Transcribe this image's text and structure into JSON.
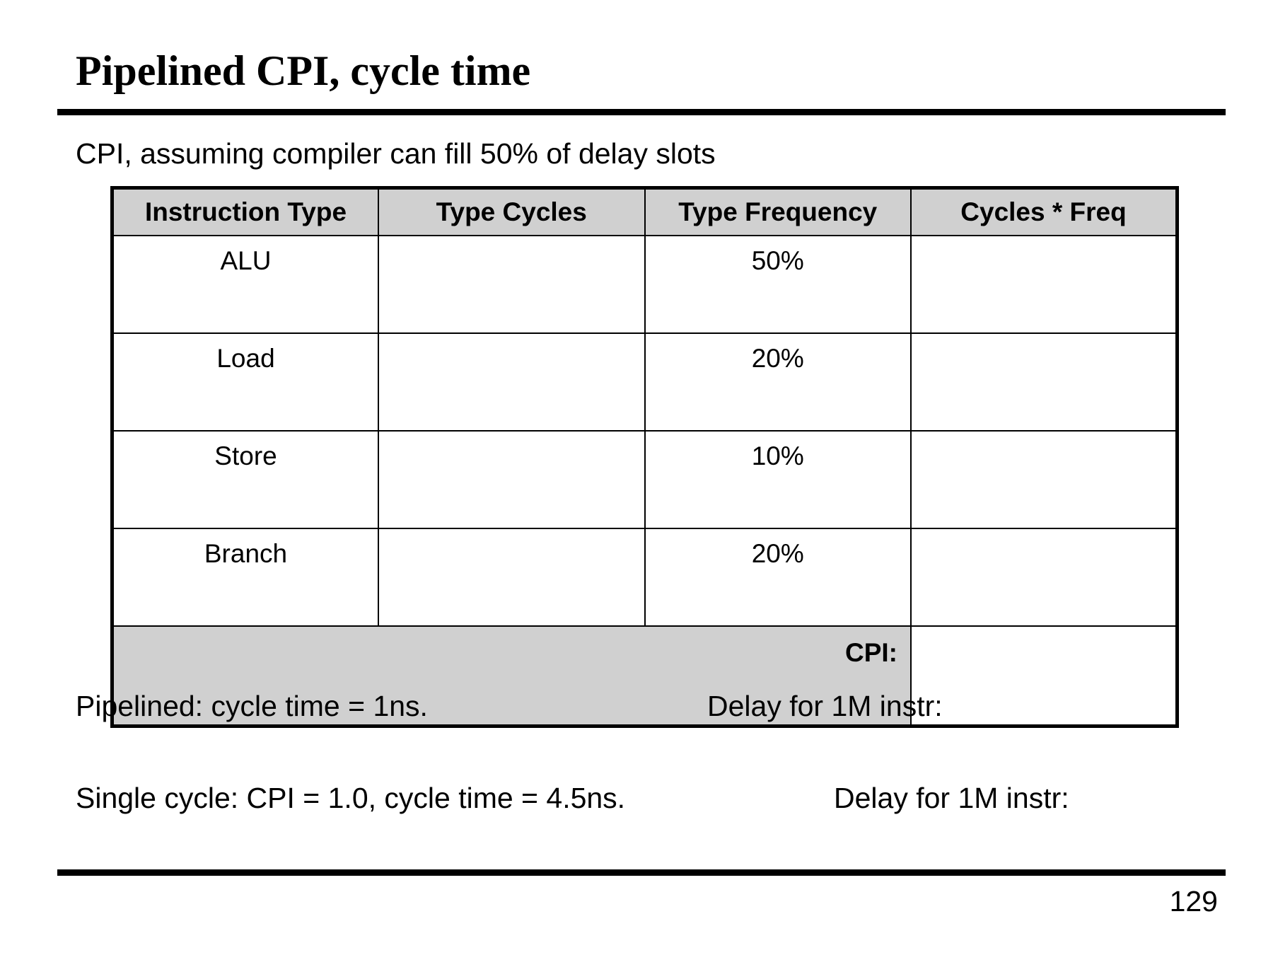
{
  "slide": {
    "title": "Pipelined CPI, cycle time",
    "intro": "CPI, assuming compiler can fill 50% of delay slots",
    "page_number": "129"
  },
  "table": {
    "headers": [
      "Instruction Type",
      "Type Cycles",
      "Type Frequency",
      "Cycles * Freq"
    ],
    "rows": [
      {
        "type": "ALU",
        "cycles": "",
        "frequency": "50%",
        "product": ""
      },
      {
        "type": "Load",
        "cycles": "",
        "frequency": "20%",
        "product": ""
      },
      {
        "type": "Store",
        "cycles": "",
        "frequency": "10%",
        "product": ""
      },
      {
        "type": "Branch",
        "cycles": "",
        "frequency": "20%",
        "product": ""
      }
    ],
    "total_label": "CPI:",
    "total_value": ""
  },
  "notes": {
    "pipelined": "Pipelined: cycle time = 1ns.",
    "pipelined_delay": "Delay for 1M instr:",
    "single_cycle": "Single cycle:  CPI = 1.0, cycle time = 4.5ns.",
    "single_cycle_delay": "Delay for 1M instr:"
  },
  "colors": {
    "header_fill": "#d0d0d0",
    "rule": "#000000"
  }
}
